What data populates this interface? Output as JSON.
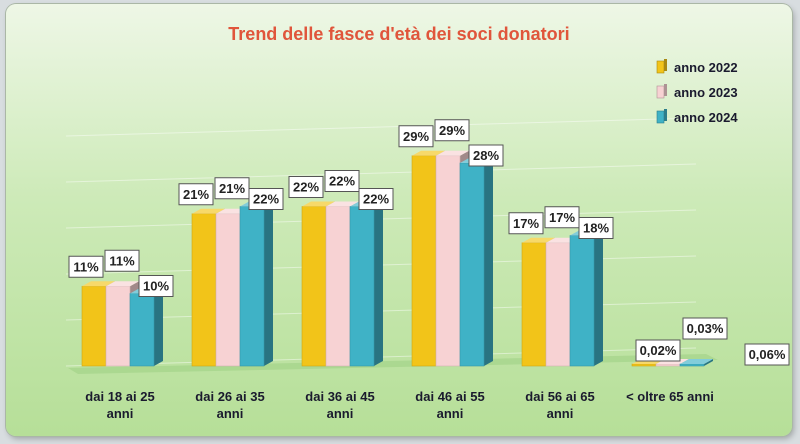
{
  "chart_data": {
    "type": "bar",
    "title": "Trend delle fasce d'età dei soci donatori",
    "title_color": "#e0553b",
    "categories": [
      [
        "dai 18 ai 25",
        "anni"
      ],
      [
        "dai 26 ai 35",
        "anni"
      ],
      [
        "dai 36 ai 45",
        "anni"
      ],
      [
        "dai 46 ai 55",
        "anni"
      ],
      [
        "dai 56 ai 65",
        "anni"
      ],
      [
        "< oltre 65 anni"
      ]
    ],
    "series": [
      {
        "name": "anno 2022",
        "values": [
          11,
          21,
          22,
          29,
          17,
          0.02
        ],
        "labels": [
          "11%",
          "21%",
          "22%",
          "29%",
          "17%",
          "0,02%"
        ],
        "color": "#f2c419"
      },
      {
        "name": "anno 2023",
        "values": [
          11,
          21,
          22,
          29,
          17,
          0.03
        ],
        "labels": [
          "11%",
          "21%",
          "22%",
          "29%",
          "17%",
          "0,03%"
        ],
        "color": "#f7d2d3"
      },
      {
        "name": "anno 2024",
        "values": [
          10,
          22,
          22,
          28,
          18,
          0.06
        ],
        "labels": [
          "10%",
          "22%",
          "22%",
          "28%",
          "18%",
          "0,06%"
        ],
        "color": "#3fb2c6"
      }
    ],
    "ylim": [
      0,
      32
    ],
    "legend_position": "top-right",
    "xlabel": "",
    "ylabel": ""
  }
}
